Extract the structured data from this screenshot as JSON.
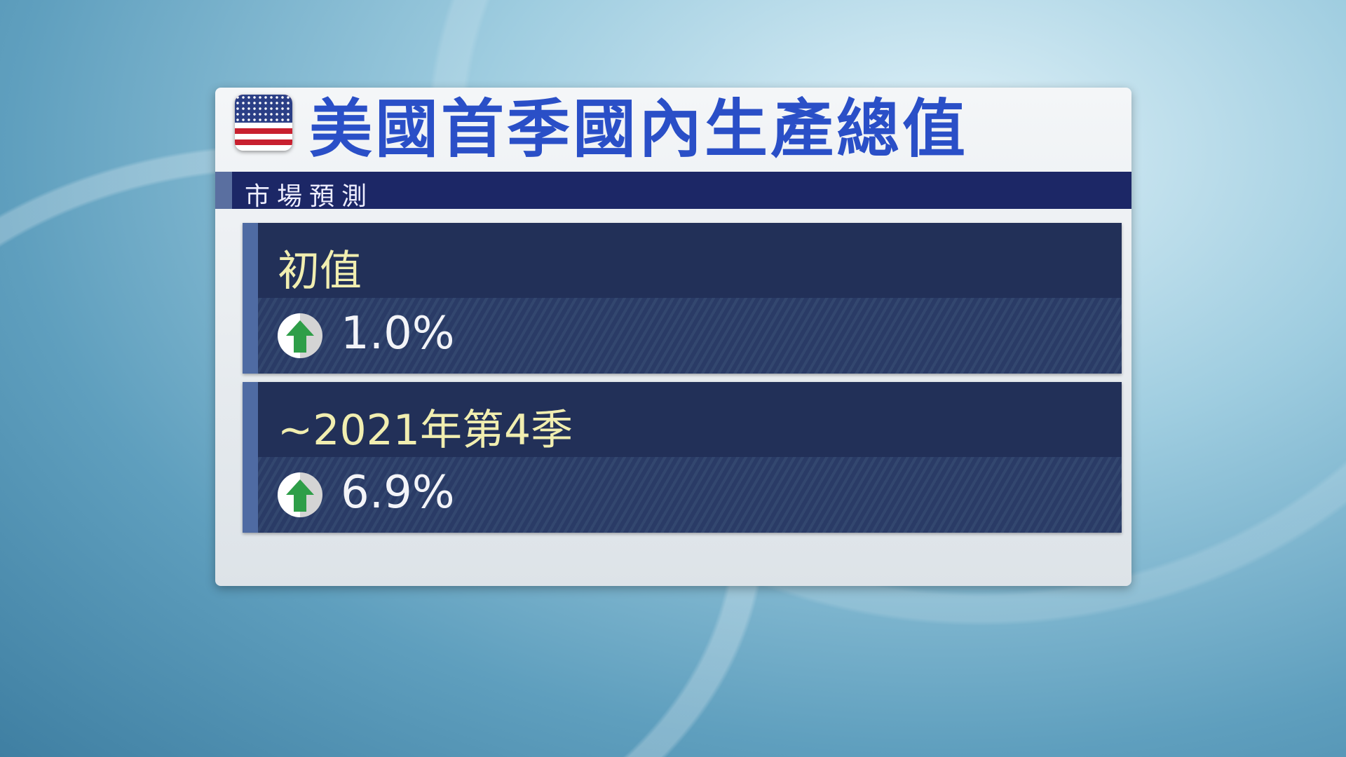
{
  "title": "美國首季國內生產總值",
  "subtitle": "市場預測",
  "flag_icon": "us-flag-icon",
  "rows": [
    {
      "label": "初值",
      "direction": "up",
      "value": "1.0%"
    },
    {
      "label": "~2021年第4季",
      "direction": "up",
      "value": "6.9%"
    }
  ],
  "colors": {
    "title": "#2a4fc7",
    "label": "#f1eeb0",
    "arrow": "#2e9e48",
    "bar": "#1c2766"
  }
}
